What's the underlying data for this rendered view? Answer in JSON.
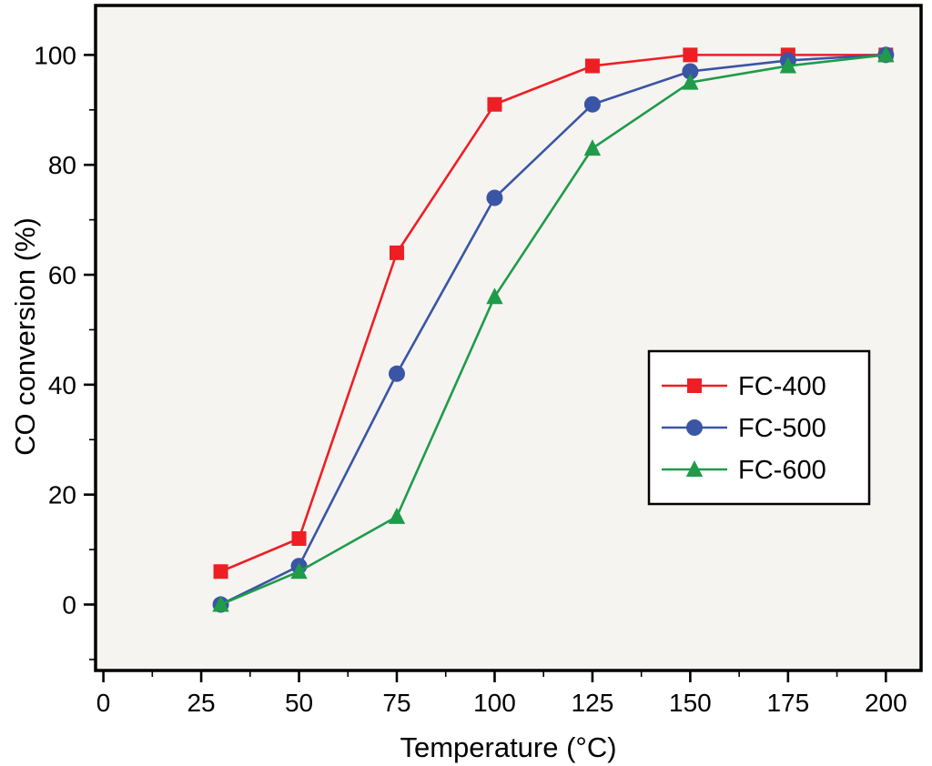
{
  "chart_data": {
    "type": "line",
    "title": "",
    "xlabel": "Temperature (°C)",
    "ylabel": "CO conversion (%)",
    "x": [
      30,
      50,
      75,
      100,
      125,
      150,
      175,
      200
    ],
    "series": [
      {
        "name": "FC-400",
        "marker": "square",
        "color": "#ed1f24",
        "values": [
          6,
          12,
          64,
          91,
          98,
          100,
          100,
          100
        ]
      },
      {
        "name": "FC-500",
        "marker": "circle",
        "color": "#3a55a5",
        "values": [
          0,
          7,
          42,
          74,
          91,
          97,
          99,
          100
        ]
      },
      {
        "name": "FC-600",
        "marker": "triangle",
        "color": "#1f9b4a",
        "values": [
          0,
          6,
          16,
          56,
          83,
          95,
          98,
          100
        ]
      }
    ],
    "xlim": [
      -2,
      209
    ],
    "ylim": [
      -12,
      109
    ],
    "x_ticks": [
      0,
      25,
      50,
      75,
      100,
      125,
      150,
      175,
      200
    ],
    "y_ticks": [
      0,
      20,
      40,
      60,
      80,
      100
    ],
    "x_minor_step": 12.5,
    "y_minor_step": 10,
    "grid": false,
    "legend": {
      "position": "right-middle",
      "entries": [
        "FC-400",
        "FC-500",
        "FC-600"
      ]
    },
    "plot_background": "#f5f4f1",
    "frame_color": "#000000",
    "text_color": "#000000"
  }
}
